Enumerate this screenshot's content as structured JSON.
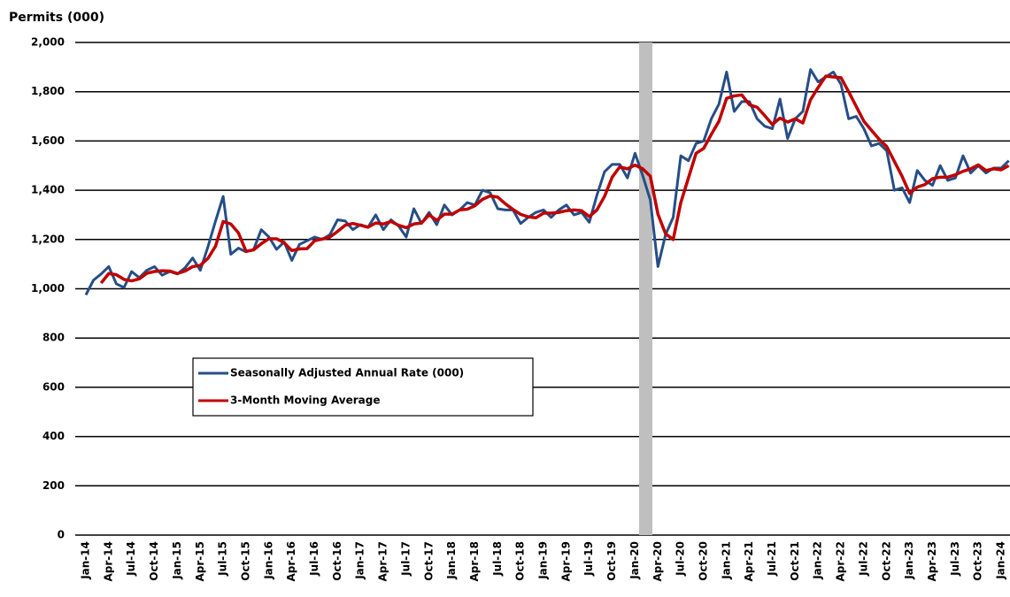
{
  "chart_data": {
    "type": "line",
    "title": "Permits (000)",
    "categories": [
      "Jan-14",
      null,
      null,
      "Apr-14",
      null,
      null,
      "Jul-14",
      null,
      null,
      "Oct-14",
      null,
      null,
      "Jan-15",
      null,
      null,
      "Apr-15",
      null,
      null,
      "Jul-15",
      null,
      null,
      "Oct-15",
      null,
      null,
      "Jan-16",
      null,
      null,
      "Apr-16",
      null,
      null,
      "Jul-16",
      null,
      null,
      "Oct-16",
      null,
      null,
      "Jan-17",
      null,
      null,
      "Apr-17",
      null,
      null,
      "Jul-17",
      null,
      null,
      "Oct-17",
      null,
      null,
      "Jan-18",
      null,
      null,
      "Apr-18",
      null,
      null,
      "Jul-18",
      null,
      null,
      "Oct-18",
      null,
      null,
      "Jan-19",
      null,
      null,
      "Apr-19",
      null,
      null,
      "Jul-19",
      null,
      null,
      "Oct-19",
      null,
      null,
      "Jan-20",
      null,
      null,
      "Apr-20",
      null,
      null,
      "Jul-20",
      null,
      null,
      "Oct-20",
      null,
      null,
      "Jan-21",
      null,
      null,
      "Apr-21",
      null,
      null,
      "Jul-21",
      null,
      null,
      "Oct-21",
      null,
      null,
      "Jan-22",
      null,
      null,
      "Apr-22",
      null,
      null,
      "Jul-22",
      null,
      null,
      "Oct-22",
      null,
      null,
      "Jan-23",
      null,
      null,
      "Apr-23",
      null,
      null,
      "Jul-23",
      null,
      null,
      "Oct-23",
      null,
      null,
      "Jan-24",
      null
    ],
    "series": [
      {
        "name": "Seasonally Adjusted Annual Rate (000)",
        "color": "#254e86",
        "values": [
          975,
          1035,
          1060,
          1090,
          1020,
          1005,
          1070,
          1045,
          1075,
          1090,
          1055,
          1070,
          1060,
          1085,
          1125,
          1075,
          1170,
          1275,
          1375,
          1140,
          1165,
          1150,
          1160,
          1240,
          1210,
          1160,
          1190,
          1115,
          1180,
          1195,
          1210,
          1200,
          1220,
          1280,
          1275,
          1240,
          1260,
          1250,
          1300,
          1240,
          1280,
          1255,
          1210,
          1325,
          1265,
          1310,
          1260,
          1340,
          1300,
          1320,
          1350,
          1340,
          1400,
          1390,
          1325,
          1320,
          1320,
          1265,
          1290,
          1310,
          1320,
          1290,
          1320,
          1340,
          1300,
          1310,
          1270,
          1380,
          1475,
          1505,
          1505,
          1450,
          1550,
          1460,
          1360,
          1090,
          1220,
          1290,
          1540,
          1520,
          1590,
          1600,
          1690,
          1750,
          1880,
          1720,
          1760,
          1760,
          1690,
          1660,
          1650,
          1770,
          1610,
          1690,
          1720,
          1890,
          1840,
          1860,
          1880,
          1830,
          1690,
          1700,
          1650,
          1580,
          1590,
          1560,
          1400,
          1410,
          1350,
          1480,
          1440,
          1420,
          1500,
          1440,
          1450,
          1540,
          1470,
          1500,
          1470,
          1490,
          1490,
          1520
        ]
      },
      {
        "name": "3-Month Moving Average",
        "color": "#c00000",
        "values": [
          null,
          null,
          1023,
          1062,
          1057,
          1038,
          1032,
          1040,
          1063,
          1070,
          1073,
          1072,
          1062,
          1072,
          1090,
          1095,
          1123,
          1173,
          1273,
          1263,
          1227,
          1152,
          1158,
          1183,
          1203,
          1203,
          1187,
          1155,
          1162,
          1163,
          1195,
          1202,
          1210,
          1233,
          1258,
          1265,
          1258,
          1250,
          1267,
          1263,
          1273,
          1258,
          1248,
          1263,
          1267,
          1300,
          1278,
          1303,
          1303,
          1320,
          1323,
          1337,
          1363,
          1377,
          1372,
          1345,
          1322,
          1302,
          1292,
          1288,
          1307,
          1307,
          1310,
          1317,
          1320,
          1317,
          1293,
          1320,
          1375,
          1453,
          1495,
          1487,
          1502,
          1487,
          1457,
          1303,
          1223,
          1200,
          1350,
          1450,
          1550,
          1570,
          1627,
          1680,
          1773,
          1783,
          1787,
          1747,
          1737,
          1703,
          1667,
          1693,
          1677,
          1690,
          1673,
          1767,
          1817,
          1863,
          1860,
          1857,
          1800,
          1740,
          1680,
          1643,
          1607,
          1577,
          1517,
          1457,
          1387,
          1413,
          1423,
          1447,
          1453,
          1453,
          1463,
          1477,
          1487,
          1503,
          1480,
          1487,
          1483,
          1500
        ]
      }
    ],
    "ylim": [
      0,
      2000
    ],
    "yticks": [
      0,
      200,
      400,
      600,
      800,
      {
        "value": 1000,
        "label": "1,000"
      },
      {
        "value": 1200,
        "label": "1,200"
      },
      {
        "value": 1400,
        "label": "1,400"
      },
      {
        "value": 1600,
        "label": "1,600"
      },
      {
        "value": 1800,
        "label": "1,800"
      },
      {
        "value": 2000,
        "label": "2,000"
      }
    ],
    "grid": true,
    "legend": "center-left"
  }
}
